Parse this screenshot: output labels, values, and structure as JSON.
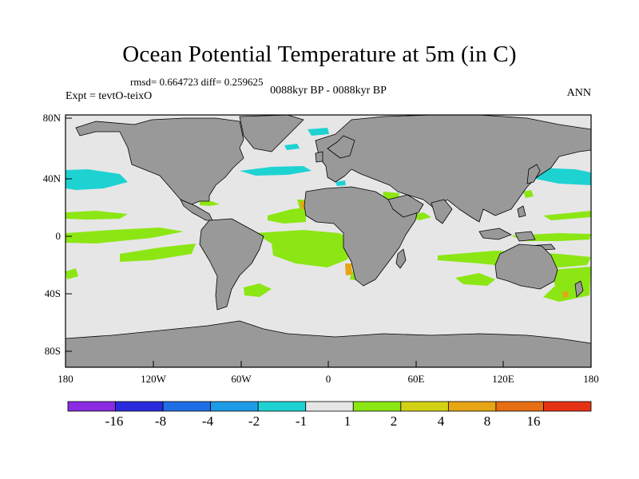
{
  "title": "Ocean Potential Temperature at 5m (in C)",
  "stats": "rmsd= 0.664723 diff= 0.259625",
  "experiment": "Expt = tevtO-teixO",
  "period": "0088kyr BP - 0088kyr BP",
  "season": "ANN",
  "map": {
    "projection": "cylindrical-equidistant",
    "lon_range": [
      -180,
      180
    ],
    "lat_range": [
      -90,
      90
    ],
    "land_color": "#999999",
    "ocean_color": "#e6e6e6",
    "lat_ticks": [
      "80N",
      "40N",
      "0",
      "40S",
      "80S"
    ],
    "lon_ticks": [
      "180",
      "120W",
      "60W",
      "0",
      "60E",
      "120E",
      "180"
    ]
  },
  "colorbar": {
    "colors": [
      "#8a2be2",
      "#2a2adc",
      "#1e6ee6",
      "#1e9be6",
      "#1ed2d2",
      "#e6e6e6",
      "#8ce614",
      "#d2d214",
      "#e6a514",
      "#e66e14",
      "#e63214"
    ],
    "labels": [
      "-16",
      "-8",
      "-4",
      "-2",
      "-1",
      "1",
      "2",
      "4",
      "8",
      "16"
    ]
  }
}
